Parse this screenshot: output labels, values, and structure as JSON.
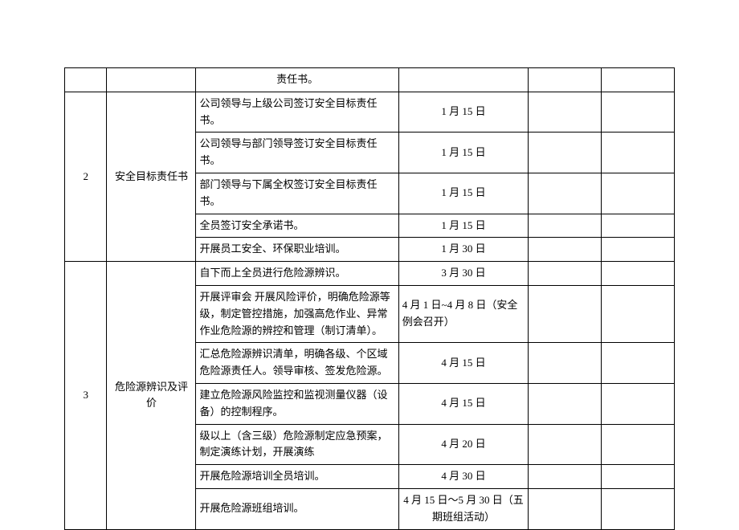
{
  "row0": {
    "c3": "责任书。"
  },
  "section2": {
    "num": "2",
    "title": "安全目标责任书",
    "rows": [
      {
        "desc": "公司领导与上级公司签订安全目标责任书。",
        "date": "1 月 15 日"
      },
      {
        "desc": "公司领导与部门领导签订安全目标责任书。",
        "date": "1 月 15 日"
      },
      {
        "desc": "部门领导与下属全权签订安全目标责任书。",
        "date": "1 月 15 日"
      },
      {
        "desc": "全员签订安全承诺书。",
        "date": "1 月 15 日"
      },
      {
        "desc": "开展员工安全、环保职业培训。",
        "date": "1 月 30 日"
      }
    ]
  },
  "section3": {
    "num": "3",
    "title": "危险源辨识及评价",
    "rows": [
      {
        "desc": "自下而上全员进行危险源辨识。",
        "date": "3 月 30 日"
      },
      {
        "desc": "开展评审会 开展风险评价，明确危险源等级，制定管控措施，加强高危作业、异常作业危险源的辨控和管理（制订清单）。",
        "date": "4 月 1 日~4 月 8 日（安全例会召开）"
      },
      {
        "desc": "汇总危险源辨识清单，明确各级、个区域危险源责任人。领导审核、签发危险源。",
        "date": "4 月 15 日"
      },
      {
        "desc": "建立危险源风险监控和监视测量仪器（设备）的控制程序。",
        "date": "4 月 15 日"
      },
      {
        "desc": "级以上（含三级）危险源制定应急预案，制定演练计划，开展演练",
        "date": "4 月 20 日"
      },
      {
        "desc": "开展危险源培训全员培训。",
        "date": "4 月 30 日"
      },
      {
        "desc": "开展危险源班组培训。",
        "date": "4 月 15 日～5 月 30 日（五期班组活动）"
      }
    ]
  }
}
